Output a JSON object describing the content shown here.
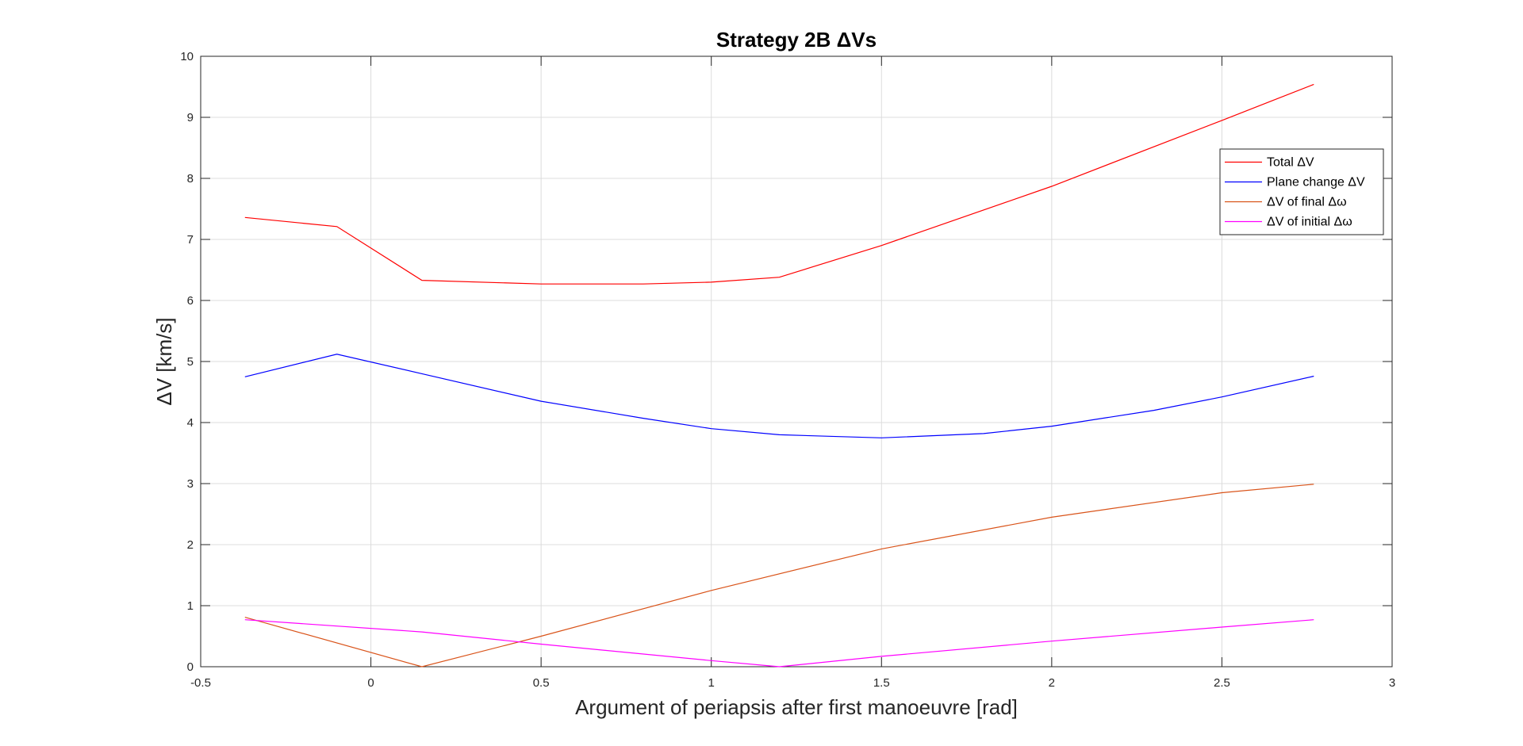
{
  "chart_data": {
    "type": "line",
    "title": "Strategy 2B ΔVs",
    "xlabel": "Argument of periapsis after first manoeuvre [rad]",
    "ylabel": "ΔV [km/s]",
    "xlim": [
      -0.5,
      3
    ],
    "ylim": [
      0,
      10
    ],
    "xticks": [
      -0.5,
      0,
      0.5,
      1,
      1.5,
      2,
      2.5,
      3
    ],
    "yticks": [
      0,
      1,
      2,
      3,
      4,
      5,
      6,
      7,
      8,
      9,
      10
    ],
    "xtick_labels": [
      "-0.5",
      "0",
      "0.5",
      "1",
      "1.5",
      "2",
      "2.5",
      "3"
    ],
    "ytick_labels": [
      "0",
      "1",
      "2",
      "3",
      "4",
      "5",
      "6",
      "7",
      "8",
      "9",
      "10"
    ],
    "grid": true,
    "legend_position": "top-right",
    "series": [
      {
        "name": "Total ΔV",
        "color": "#ff0000",
        "x": [
          -0.37,
          -0.1,
          0.15,
          0.5,
          0.8,
          1.0,
          1.2,
          1.5,
          2.0,
          2.5,
          2.77
        ],
        "y": [
          7.36,
          7.21,
          6.33,
          6.27,
          6.27,
          6.3,
          6.38,
          6.9,
          7.87,
          8.95,
          9.54
        ]
      },
      {
        "name": "Plane change ΔV",
        "color": "#0000ff",
        "x": [
          -0.37,
          -0.1,
          0.15,
          0.5,
          0.8,
          1.0,
          1.2,
          1.5,
          1.8,
          2.0,
          2.3,
          2.5,
          2.77
        ],
        "y": [
          4.75,
          5.12,
          4.8,
          4.35,
          4.07,
          3.9,
          3.8,
          3.75,
          3.82,
          3.94,
          4.2,
          4.42,
          4.76
        ]
      },
      {
        "name": "ΔV of final Δω",
        "color": "#d95319",
        "x": [
          -0.37,
          0.15,
          0.5,
          1.0,
          1.5,
          2.0,
          2.5,
          2.77
        ],
        "y": [
          0.81,
          0.0,
          0.5,
          1.25,
          1.93,
          2.45,
          2.85,
          2.99
        ]
      },
      {
        "name": "ΔV of initial Δω",
        "color": "#ff00ff",
        "x": [
          -0.37,
          0.15,
          0.5,
          1.0,
          1.2,
          1.5,
          2.0,
          2.5,
          2.77
        ],
        "y": [
          0.77,
          0.57,
          0.37,
          0.1,
          0.0,
          0.17,
          0.42,
          0.65,
          0.77
        ]
      }
    ]
  }
}
